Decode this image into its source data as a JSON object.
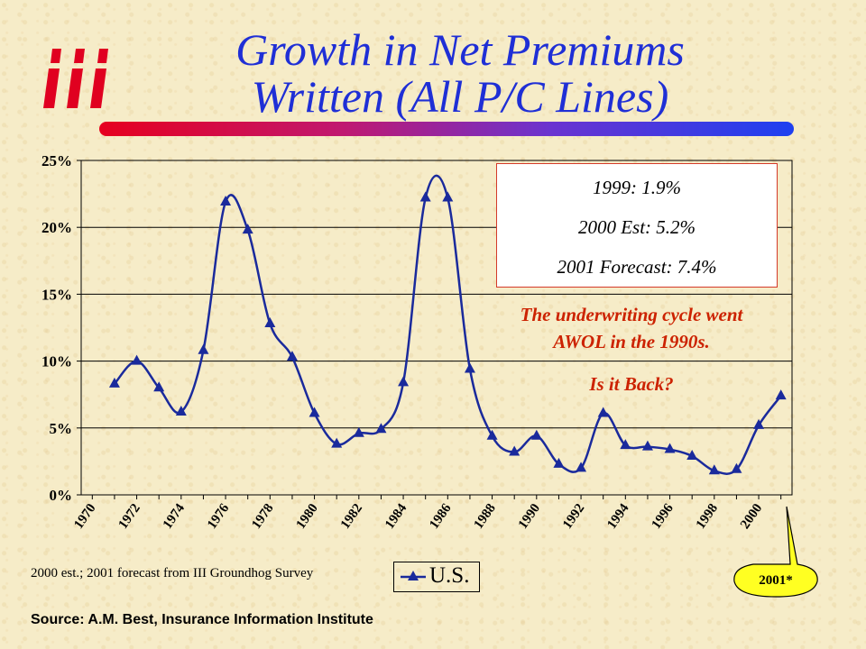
{
  "logo": {
    "text": "iii",
    "color": "#e00020"
  },
  "header": {
    "title_line1": "Growth in Net Premiums",
    "title_line2": "Written (All P/C Lines)",
    "title_color": "#1f2fd6"
  },
  "note_box": {
    "line1": "1999:  1.9%",
    "line2": "2000 Est: 5.2%",
    "line3": "2001 Forecast: 7.4%"
  },
  "annotation": {
    "line1": "The underwriting cycle went",
    "line2": "AWOL in the 1990s.",
    "question": "Is it Back?",
    "color": "#cc2200"
  },
  "footnote": "2000 est.; 2001 forecast from III Groundhog Survey",
  "source": "Source:  A.M. Best, Insurance Information Institute",
  "callout": "2001*",
  "chart_data": {
    "type": "line",
    "title": "",
    "xlabel": "",
    "ylabel": "",
    "ylim": [
      0,
      25
    ],
    "yticks": [
      "0%",
      "5%",
      "10%",
      "15%",
      "20%",
      "25%"
    ],
    "xticks": [
      "1970",
      "1972",
      "1974",
      "1976",
      "1978",
      "1980",
      "1982",
      "1984",
      "1986",
      "1988",
      "1990",
      "1992",
      "1994",
      "1996",
      "1998",
      "2000"
    ],
    "grid": true,
    "legend": "bottom-center",
    "series": [
      {
        "name": "U.S.",
        "color": "#1a2a9c",
        "marker": "triangle",
        "x": [
          1971,
          1972,
          1973,
          1974,
          1975,
          1976,
          1977,
          1978,
          1979,
          1980,
          1981,
          1982,
          1983,
          1984,
          1985,
          1986,
          1987,
          1988,
          1989,
          1990,
          1991,
          1992,
          1993,
          1994,
          1995,
          1996,
          1997,
          1998,
          1999,
          2000,
          2001
        ],
        "values": [
          8.3,
          10.0,
          8.0,
          6.2,
          10.8,
          21.9,
          19.8,
          12.8,
          10.3,
          6.1,
          3.8,
          4.6,
          4.9,
          8.4,
          22.2,
          22.2,
          9.4,
          4.4,
          3.2,
          4.4,
          2.3,
          2.0,
          6.1,
          3.7,
          3.6,
          3.4,
          2.9,
          1.8,
          1.9,
          5.2,
          7.4
        ]
      }
    ]
  }
}
